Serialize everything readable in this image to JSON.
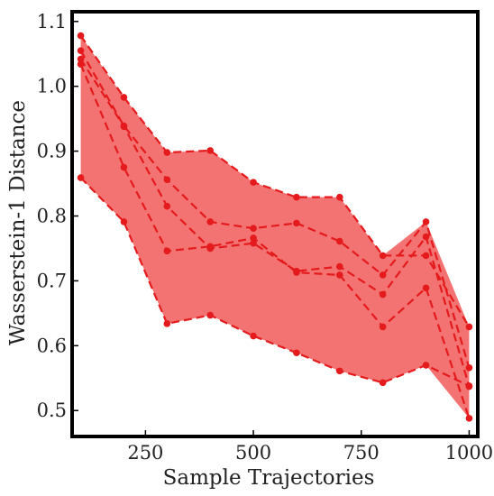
{
  "chart_data": {
    "type": "line",
    "xlabel": "Sample Trajectories",
    "ylabel": "Wasserstein-1 Distance",
    "xlim": [
      80,
      1020
    ],
    "ylim": [
      0.46,
      1.115
    ],
    "xticks": [
      250,
      500,
      750,
      1000
    ],
    "yticks": [
      0.5,
      0.6,
      0.7,
      0.8,
      0.9,
      1.0,
      1.1
    ],
    "ytick_labels": [
      "0.5",
      "0.6",
      "0.7",
      "0.8",
      "0.9",
      "1.0",
      "1.1"
    ],
    "x": [
      100,
      200,
      300,
      400,
      500,
      600,
      700,
      800,
      900,
      1000
    ],
    "series": [
      {
        "values": [
          1.078,
          0.983,
          0.898,
          0.901,
          0.852,
          0.829,
          0.829,
          0.739,
          0.739,
          0.629
        ]
      },
      {
        "values": [
          1.055,
          0.939,
          0.856,
          0.791,
          0.781,
          0.789,
          0.761,
          0.709,
          0.791,
          0.566
        ]
      },
      {
        "values": [
          1.042,
          0.938,
          0.815,
          0.75,
          0.758,
          0.715,
          0.722,
          0.679,
          0.768,
          0.537
        ]
      },
      {
        "values": [
          1.034,
          0.875,
          0.746,
          0.753,
          0.766,
          0.713,
          0.709,
          0.629,
          0.689,
          0.488
        ]
      },
      {
        "values": [
          0.859,
          0.791,
          0.634,
          0.647,
          0.615,
          0.589,
          0.561,
          0.543,
          0.57,
          0.538
        ]
      }
    ],
    "band": {
      "lower": [
        0.859,
        0.791,
        0.634,
        0.647,
        0.615,
        0.589,
        0.561,
        0.543,
        0.57,
        0.488
      ],
      "upper": [
        1.078,
        0.983,
        0.898,
        0.901,
        0.852,
        0.829,
        0.829,
        0.739,
        0.791,
        0.629
      ]
    },
    "colors": {
      "line": "#e41a1c",
      "band": "#f26b6b",
      "axis": "#000000"
    },
    "grid": false,
    "legend": "none"
  }
}
